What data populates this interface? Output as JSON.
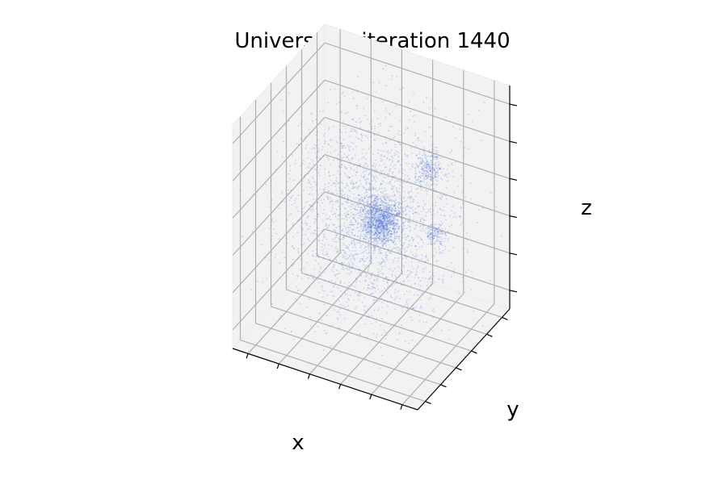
{
  "chart_data": {
    "type": "scatter",
    "projection": "3d",
    "title": "Universe at iteration 1440",
    "xlabel": "x",
    "ylabel": "y",
    "zlabel": "z",
    "tick_labels_shown": false,
    "grid": true,
    "marker_color": "#4169e1",
    "marker_alpha": 0.25,
    "series": [
      {
        "point_count_approx": 4000,
        "clusters": [
          {
            "center": [
              -0.15,
              -0.1,
              0.05
            ],
            "spread": 0.1,
            "weight": 0.3
          },
          {
            "center": [
              -0.45,
              0.35,
              0.4
            ],
            "spread": 0.07,
            "weight": 0.06
          },
          {
            "center": [
              -0.75,
              -0.1,
              0.1
            ],
            "spread": 0.05,
            "weight": 0.03
          },
          {
            "center": [
              0.0,
              0.0,
              0.0
            ],
            "spread": 0.45,
            "weight": 0.61
          }
        ]
      }
    ],
    "xlim": [
      -1,
      1
    ],
    "ylim": [
      -1,
      1
    ],
    "zlim": [
      -1,
      1
    ]
  },
  "colors": {
    "pane": "#f2f2f2",
    "grid": "#b0b0b0",
    "points": "#4169e1"
  }
}
